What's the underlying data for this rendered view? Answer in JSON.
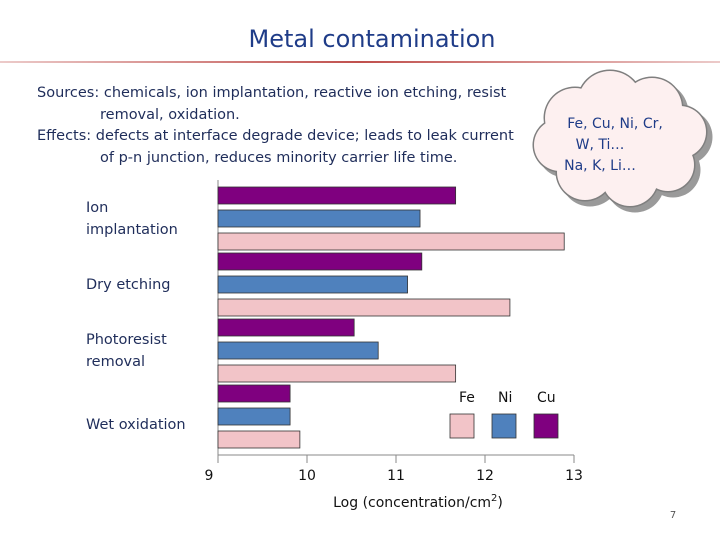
{
  "slide": {
    "title": "Metal contamination",
    "text": [
      "Sources: chemicals, ion implantation, reactive ion etching, resist",
      "removal,  oxidation.",
      "Effects: defects at interface degrade device; leads to leak current",
      "of p-n junction, reduces minority carrier life time."
    ],
    "cloud": [
      "Fe, Cu, Ni, Cr,",
      "W, Ti…",
      "Na, K, Li…"
    ],
    "page_number": "7"
  },
  "chart_data": {
    "type": "bar",
    "orientation": "horizontal",
    "categories": [
      [
        "Ion",
        "implantation"
      ],
      [
        "Dry etching"
      ],
      [
        "Photoresist",
        "removal"
      ],
      [
        "Wet oxidation"
      ]
    ],
    "series": [
      {
        "name": "Cu",
        "color": "#7f007f",
        "values": [
          11.67,
          11.29,
          10.53,
          9.81
        ]
      },
      {
        "name": "Ni",
        "color": "#4f81bd",
        "values": [
          11.27,
          11.13,
          10.8,
          9.81
        ]
      },
      {
        "name": "Fe",
        "color": "#f2c4c8",
        "values": [
          12.89,
          12.28,
          11.67,
          9.92
        ]
      }
    ],
    "legend_order": [
      "Fe",
      "Ni",
      "Cu"
    ],
    "xlim": [
      9,
      13
    ],
    "xticks": [
      9,
      10,
      11,
      12,
      13
    ],
    "x_label": {
      "text": "Log (concentration/cm",
      "sup": "2",
      "tail": ")"
    }
  }
}
